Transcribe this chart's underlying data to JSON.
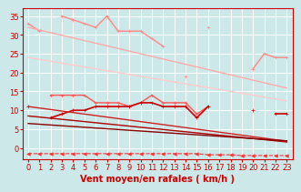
{
  "x": [
    0,
    1,
    2,
    3,
    4,
    5,
    6,
    7,
    8,
    9,
    10,
    11,
    12,
    13,
    14,
    15,
    16,
    17,
    18,
    19,
    20,
    21,
    22,
    23
  ],
  "series": [
    {
      "name": "rafales_scatter",
      "color": "#ff8888",
      "linewidth": 1.0,
      "marker": "+",
      "markersize": 3.5,
      "linestyle": "-",
      "values": [
        33,
        31,
        null,
        35,
        34,
        33,
        32,
        35,
        31,
        31,
        31,
        29,
        27,
        null,
        19,
        null,
        32,
        null,
        null,
        null,
        21,
        25,
        24,
        24
      ]
    },
    {
      "name": "rafales_trend_top",
      "color": "#ffaaaa",
      "linewidth": 1.0,
      "marker": null,
      "markersize": 0,
      "linestyle": "-",
      "values": [
        32,
        31.3,
        30.6,
        29.9,
        29.2,
        28.5,
        27.8,
        27.1,
        26.4,
        25.7,
        25.0,
        24.3,
        23.6,
        22.9,
        22.2,
        21.5,
        20.8,
        20.1,
        19.4,
        18.7,
        18.0,
        17.3,
        16.6,
        15.9
      ]
    },
    {
      "name": "rafales_trend_bottom",
      "color": "#ffcccc",
      "linewidth": 1.0,
      "marker": null,
      "markersize": 0,
      "linestyle": "-",
      "values": [
        24,
        23.5,
        23.0,
        22.5,
        22.0,
        21.5,
        21.0,
        20.5,
        20.0,
        19.5,
        19.0,
        18.5,
        18.0,
        17.5,
        17.0,
        16.5,
        16.0,
        15.5,
        15.0,
        14.5,
        14.0,
        13.5,
        13.0,
        12.5
      ]
    },
    {
      "name": "moyen_scatter_top",
      "color": "#ff5555",
      "linewidth": 1.0,
      "marker": "+",
      "markersize": 3.5,
      "linestyle": "-",
      "values": [
        null,
        null,
        14,
        14,
        14,
        14,
        12,
        12,
        12,
        11,
        12,
        14,
        12,
        12,
        12,
        9,
        11,
        null,
        null,
        null,
        null,
        null,
        null,
        null
      ]
    },
    {
      "name": "moyen_scatter_mid",
      "color": "#cc0000",
      "linewidth": 1.2,
      "marker": "+",
      "markersize": 3.5,
      "linestyle": "-",
      "values": [
        11,
        null,
        8,
        9,
        10,
        10,
        11,
        11,
        11,
        11,
        12,
        12,
        11,
        11,
        11,
        8,
        11,
        null,
        null,
        null,
        10,
        null,
        9,
        9
      ]
    },
    {
      "name": "moyen_trend_top",
      "color": "#cc2222",
      "linewidth": 1.0,
      "marker": null,
      "markersize": 0,
      "linestyle": "-",
      "values": [
        11,
        10.6,
        10.2,
        9.8,
        9.4,
        9.0,
        8.6,
        8.2,
        7.8,
        7.4,
        7.0,
        6.6,
        6.2,
        5.8,
        5.4,
        5.0,
        4.6,
        4.2,
        3.8,
        3.4,
        3.0,
        2.6,
        2.2,
        1.8
      ]
    },
    {
      "name": "moyen_trend_mid",
      "color": "#aa0000",
      "linewidth": 1.0,
      "marker": null,
      "markersize": 0,
      "linestyle": "-",
      "values": [
        8.5,
        8.2,
        7.9,
        7.6,
        7.3,
        7.0,
        6.7,
        6.4,
        6.1,
        5.8,
        5.5,
        5.2,
        4.9,
        4.6,
        4.3,
        4.0,
        3.7,
        3.4,
        3.1,
        2.8,
        2.5,
        2.2,
        1.9,
        1.6
      ]
    },
    {
      "name": "moyen_trend_bottom",
      "color": "#880000",
      "linewidth": 1.0,
      "marker": null,
      "markersize": 0,
      "linestyle": "-",
      "values": [
        6.5,
        6.3,
        6.1,
        5.9,
        5.7,
        5.5,
        5.3,
        5.1,
        4.9,
        4.7,
        4.5,
        4.3,
        4.1,
        3.9,
        3.7,
        3.5,
        3.3,
        3.1,
        2.9,
        2.7,
        2.5,
        2.3,
        2.1,
        1.9
      ]
    },
    {
      "name": "bottom_dashed",
      "color": "#ff3333",
      "linewidth": 0.8,
      "marker": "<",
      "markersize": 2.5,
      "linestyle": "--",
      "values": [
        -1.5,
        -1.5,
        -1.5,
        -1.5,
        -1.5,
        -1.5,
        -1.5,
        -1.5,
        -1.5,
        -1.5,
        -1.5,
        -1.5,
        -1.5,
        -1.5,
        -1.5,
        -1.5,
        -1.8,
        -1.8,
        -1.8,
        -2.0,
        -2.0,
        -2.0,
        -2.0,
        -2.0
      ]
    }
  ],
  "xlabel": "Vent moyen/en rafales ( km/h )",
  "xlim": [
    -0.5,
    23.5
  ],
  "ylim": [
    -3,
    37
  ],
  "yticks": [
    0,
    5,
    10,
    15,
    20,
    25,
    30,
    35
  ],
  "xticks": [
    0,
    1,
    2,
    3,
    4,
    5,
    6,
    7,
    8,
    9,
    10,
    11,
    12,
    13,
    14,
    15,
    16,
    17,
    18,
    19,
    20,
    21,
    22,
    23
  ],
  "bg_color": "#cce8e8",
  "grid_color": "#ffffff",
  "tick_color": "#cc0000",
  "xlabel_color": "#cc0000",
  "xlabel_fontsize": 7.0,
  "tick_fontsize": 6.0
}
